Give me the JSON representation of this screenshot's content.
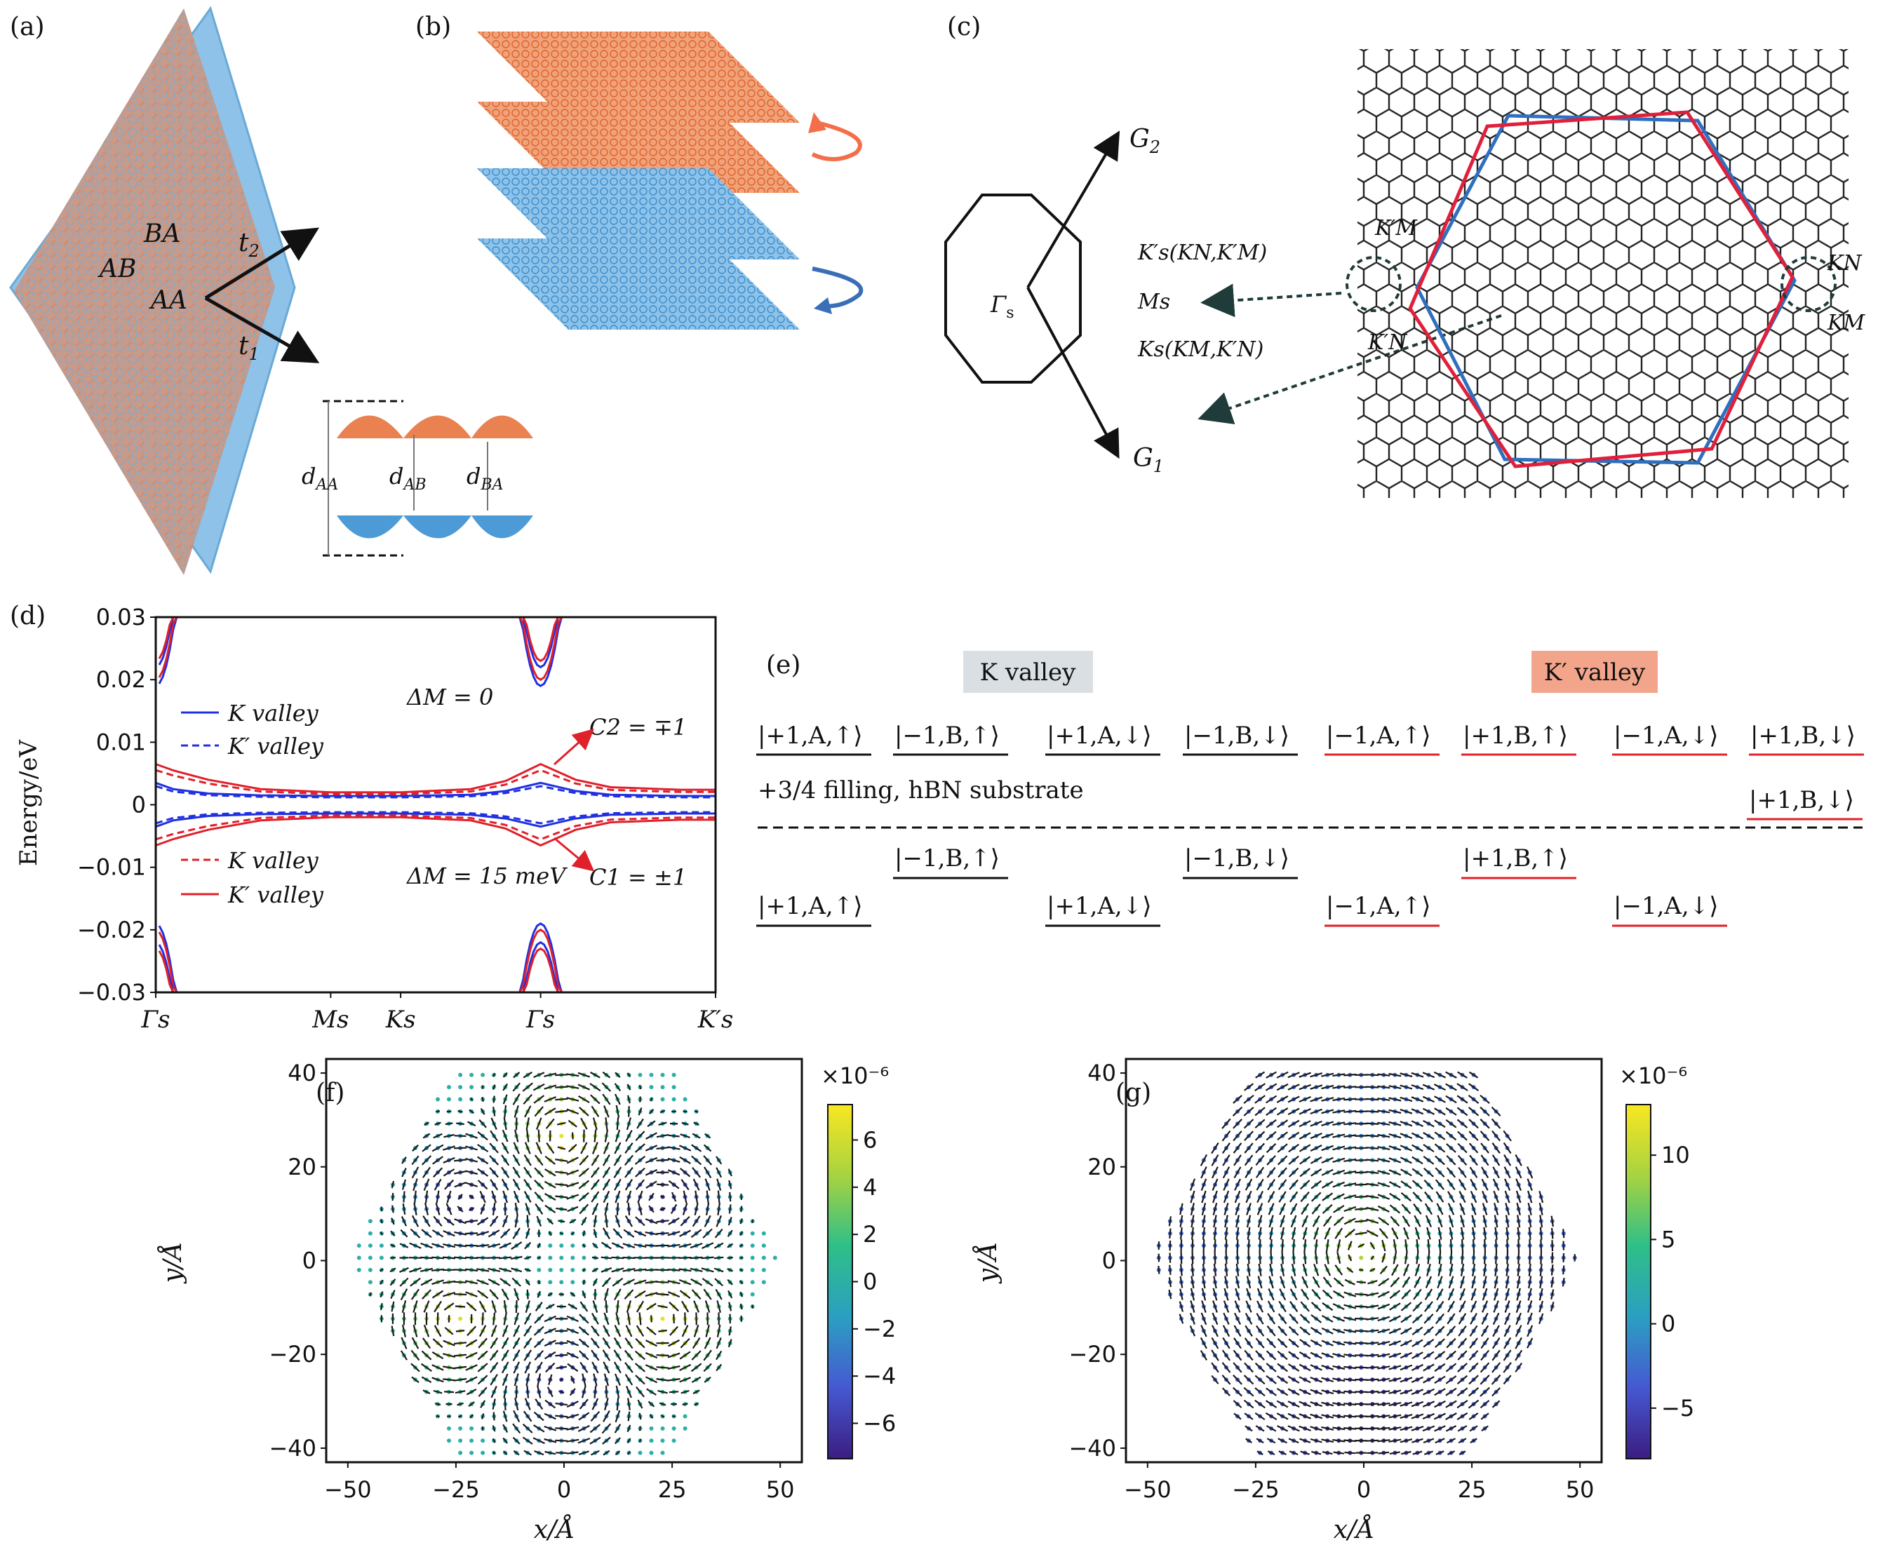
{
  "panels": {
    "a": {
      "label": "(a)",
      "stack_labels": [
        "BA",
        "AB",
        "AA"
      ],
      "vectors": [
        "t",
        "t"
      ],
      "vector_subs": [
        "2",
        "1"
      ],
      "distances": [
        {
          "main": "d",
          "sub": "AA"
        },
        {
          "main": "d",
          "sub": "AB"
        },
        {
          "main": "d",
          "sub": "BA"
        }
      ]
    },
    "b": {
      "label": "(b)"
    },
    "c": {
      "label": "(c)",
      "gamma": "Γ",
      "gamma_sub": "s",
      "G1": "G",
      "G1_sub": "1",
      "G2": "G",
      "G2_sub": "2",
      "kprime_label": "K′s(KN,K′M)",
      "m_label": "Ms",
      "k_label": "Ks(KM,K′N)",
      "corner_labels": [
        "K′M",
        "K′N",
        "KN",
        "KM"
      ]
    },
    "d": {
      "label": "(d)"
    },
    "e": {
      "label": "(e)",
      "k_valley": "K valley",
      "kp_valley": "K′ valley",
      "top_kets": [
        "|+1,A,↑⟩",
        "|−1,B,↑⟩",
        "|+1,A,↓⟩",
        "|−1,B,↓⟩",
        "|−1,A,↑⟩",
        "|+1,B,↑⟩",
        "|−1,A,↓⟩",
        "|+1,B,↓⟩"
      ],
      "filling": "+3/4 filling, hBN substrate",
      "filled_ket": "|+1,B,↓⟩",
      "upper_kets": [
        "|−1,B,↑⟩",
        "|−1,B,↓⟩",
        "|+1,B,↑⟩"
      ],
      "lower_kets": [
        "|+1,A,↑⟩",
        "|+1,A,↓⟩",
        "|−1,A,↑⟩",
        "|−1,A,↓⟩"
      ],
      "colors": {
        "k_bg": "#d9dfe2",
        "kp_bg": "#f3a58b",
        "red": "#e0202a"
      }
    },
    "f": {
      "label": "(f)",
      "multiplier": "×10⁻⁶",
      "cbar_ticks": [
        "6",
        "4",
        "2",
        "0",
        "−2",
        "−4",
        "−6"
      ]
    },
    "g": {
      "label": "(g)",
      "multiplier": "×10⁻⁶",
      "cbar_ticks": [
        "10",
        "5",
        "0",
        "−5"
      ]
    }
  },
  "chart_data": [
    {
      "type": "line",
      "panel": "d",
      "ylabel": "Energy/eV",
      "ylim": [
        -0.03,
        0.03
      ],
      "yticks": [
        "0.03",
        "0.02",
        "0.01",
        "0",
        "−0.01",
        "−0.02",
        "−0.03"
      ],
      "xticks": [
        "Γs",
        "Ms",
        "Ks",
        "Γs",
        "K′s"
      ],
      "xtick_pos": [
        0,
        1,
        1.4,
        2.2,
        3.2
      ],
      "annotations": {
        "d0": "ΔM = 0",
        "d15": "ΔM = 15 meV",
        "c2": "C2 = ∓1",
        "c1": "C1 = ±1"
      },
      "legend_top": [
        "K valley",
        "K′ valley"
      ],
      "legend_bottom": [
        "K valley",
        "K′ valley"
      ],
      "series": [
        {
          "name": "K valley ΔM=0 (+)",
          "x": [
            0,
            0.1,
            0.3,
            0.6,
            1.0,
            1.4,
            1.8,
            2.0,
            2.2,
            2.4,
            2.6,
            3.0,
            3.2
          ],
          "values": [
            0.0035,
            0.0025,
            0.0018,
            0.0015,
            0.0014,
            0.0014,
            0.0016,
            0.0022,
            0.0035,
            0.0022,
            0.0016,
            0.0014,
            0.0014
          ]
        },
        {
          "name": "K valley ΔM=0 (−)",
          "x": [
            0,
            0.1,
            0.3,
            0.6,
            1.0,
            1.4,
            1.8,
            2.0,
            2.2,
            2.4,
            2.6,
            3.0,
            3.2
          ],
          "values": [
            -0.0035,
            -0.0025,
            -0.0018,
            -0.0015,
            -0.0014,
            -0.0014,
            -0.0016,
            -0.0022,
            -0.0035,
            -0.0022,
            -0.0016,
            -0.0014,
            -0.0014
          ]
        },
        {
          "name": "K′ valley ΔM=15meV (+)",
          "x": [
            0,
            0.1,
            0.3,
            0.6,
            1.0,
            1.4,
            1.8,
            2.0,
            2.2,
            2.4,
            2.6,
            3.0,
            3.2
          ],
          "values": [
            0.0065,
            0.0055,
            0.004,
            0.0025,
            0.002,
            0.002,
            0.0025,
            0.0038,
            0.0065,
            0.004,
            0.0028,
            0.0024,
            0.0024
          ]
        },
        {
          "name": "K′ valley ΔM=15meV (−)",
          "x": [
            0,
            0.1,
            0.3,
            0.6,
            1.0,
            1.4,
            1.8,
            2.0,
            2.2,
            2.4,
            2.6,
            3.0,
            3.2
          ],
          "values": [
            -0.0065,
            -0.0055,
            -0.004,
            -0.0025,
            -0.002,
            -0.002,
            -0.0025,
            -0.0038,
            -0.0065,
            -0.004,
            -0.0028,
            -0.0024,
            -0.0024
          ]
        }
      ]
    },
    {
      "type": "heatmap",
      "panel": "f",
      "xlabel": "x/Å",
      "ylabel": "y/Å",
      "xlim": [
        -55,
        55
      ],
      "ylim": [
        -43,
        43
      ],
      "xticks": [
        "−50",
        "−25",
        "0",
        "25",
        "50"
      ],
      "xtick_vals": [
        -50,
        -25,
        0,
        25,
        50
      ],
      "yticks": [
        "40",
        "20",
        "0",
        "−20",
        "−40"
      ],
      "ytick_vals": [
        40,
        20,
        0,
        -20,
        -40
      ],
      "clim": [
        -7.5,
        7.5
      ]
    },
    {
      "type": "heatmap",
      "panel": "g",
      "xlabel": "x/Å",
      "ylabel": "y/Å",
      "xlim": [
        -55,
        55
      ],
      "ylim": [
        -43,
        43
      ],
      "xticks": [
        "−50",
        "−25",
        "0",
        "25",
        "50"
      ],
      "xtick_vals": [
        -50,
        -25,
        0,
        25,
        50
      ],
      "yticks": [
        "40",
        "20",
        "0",
        "−20",
        "−40"
      ],
      "ytick_vals": [
        40,
        20,
        0,
        -20,
        -40
      ],
      "clim": [
        -8,
        13
      ]
    }
  ]
}
